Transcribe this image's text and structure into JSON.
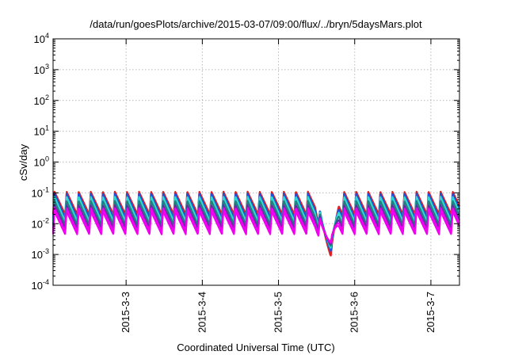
{
  "chart_data": {
    "type": "line",
    "title": "/data/run/goesPlots/archive/2015-03-07/09:00/flux/../bryn/5daysMars.plot",
    "xlabel": "Coordinated Universal Time (UTC)",
    "ylabel": "cSv/day",
    "x_axis": {
      "type": "time",
      "range": [
        "2015-03-02T01:00",
        "2015-03-07T09:00"
      ],
      "ticks": [
        "2015-3-3",
        "2015-3-4",
        "2015-3-5",
        "2015-3-6",
        "2015-3-7"
      ]
    },
    "y_axis": {
      "scale": "log",
      "range": [
        0.0001,
        10000
      ],
      "ticks": [
        {
          "base": "10",
          "exp": "-4"
        },
        {
          "base": "10",
          "exp": "-3"
        },
        {
          "base": "10",
          "exp": "-2"
        },
        {
          "base": "10",
          "exp": "-1"
        },
        {
          "base": "10",
          "exp": "0"
        },
        {
          "base": "10",
          "exp": "1"
        },
        {
          "base": "10",
          "exp": "2"
        },
        {
          "base": "10",
          "exp": "3"
        },
        {
          "base": "10",
          "exp": "4"
        }
      ]
    },
    "grid": true,
    "legend": "none",
    "colors": {
      "red": "#e02020",
      "blue": "#2050d8",
      "cyan": "#30d8d0",
      "teal": "#208080",
      "purple": "#6030a0",
      "magenta": "#f000f0",
      "grid": "#b8b8b8"
    },
    "series_pattern": {
      "description_values": "each series repeats a sawtooth: sharp rise to a peak then decay to a trough, roughly every 3.8 hours",
      "peak_values": [
        0.11,
        0.095,
        0.075,
        0.055,
        0.04,
        0.032,
        0.025
      ],
      "trough_values": [
        0.02,
        0.015,
        0.012,
        0.009,
        0.007,
        0.0055,
        0.0045
      ],
      "min_value": 0.0005,
      "min_time": "2015-03-05T16:30"
    }
  }
}
